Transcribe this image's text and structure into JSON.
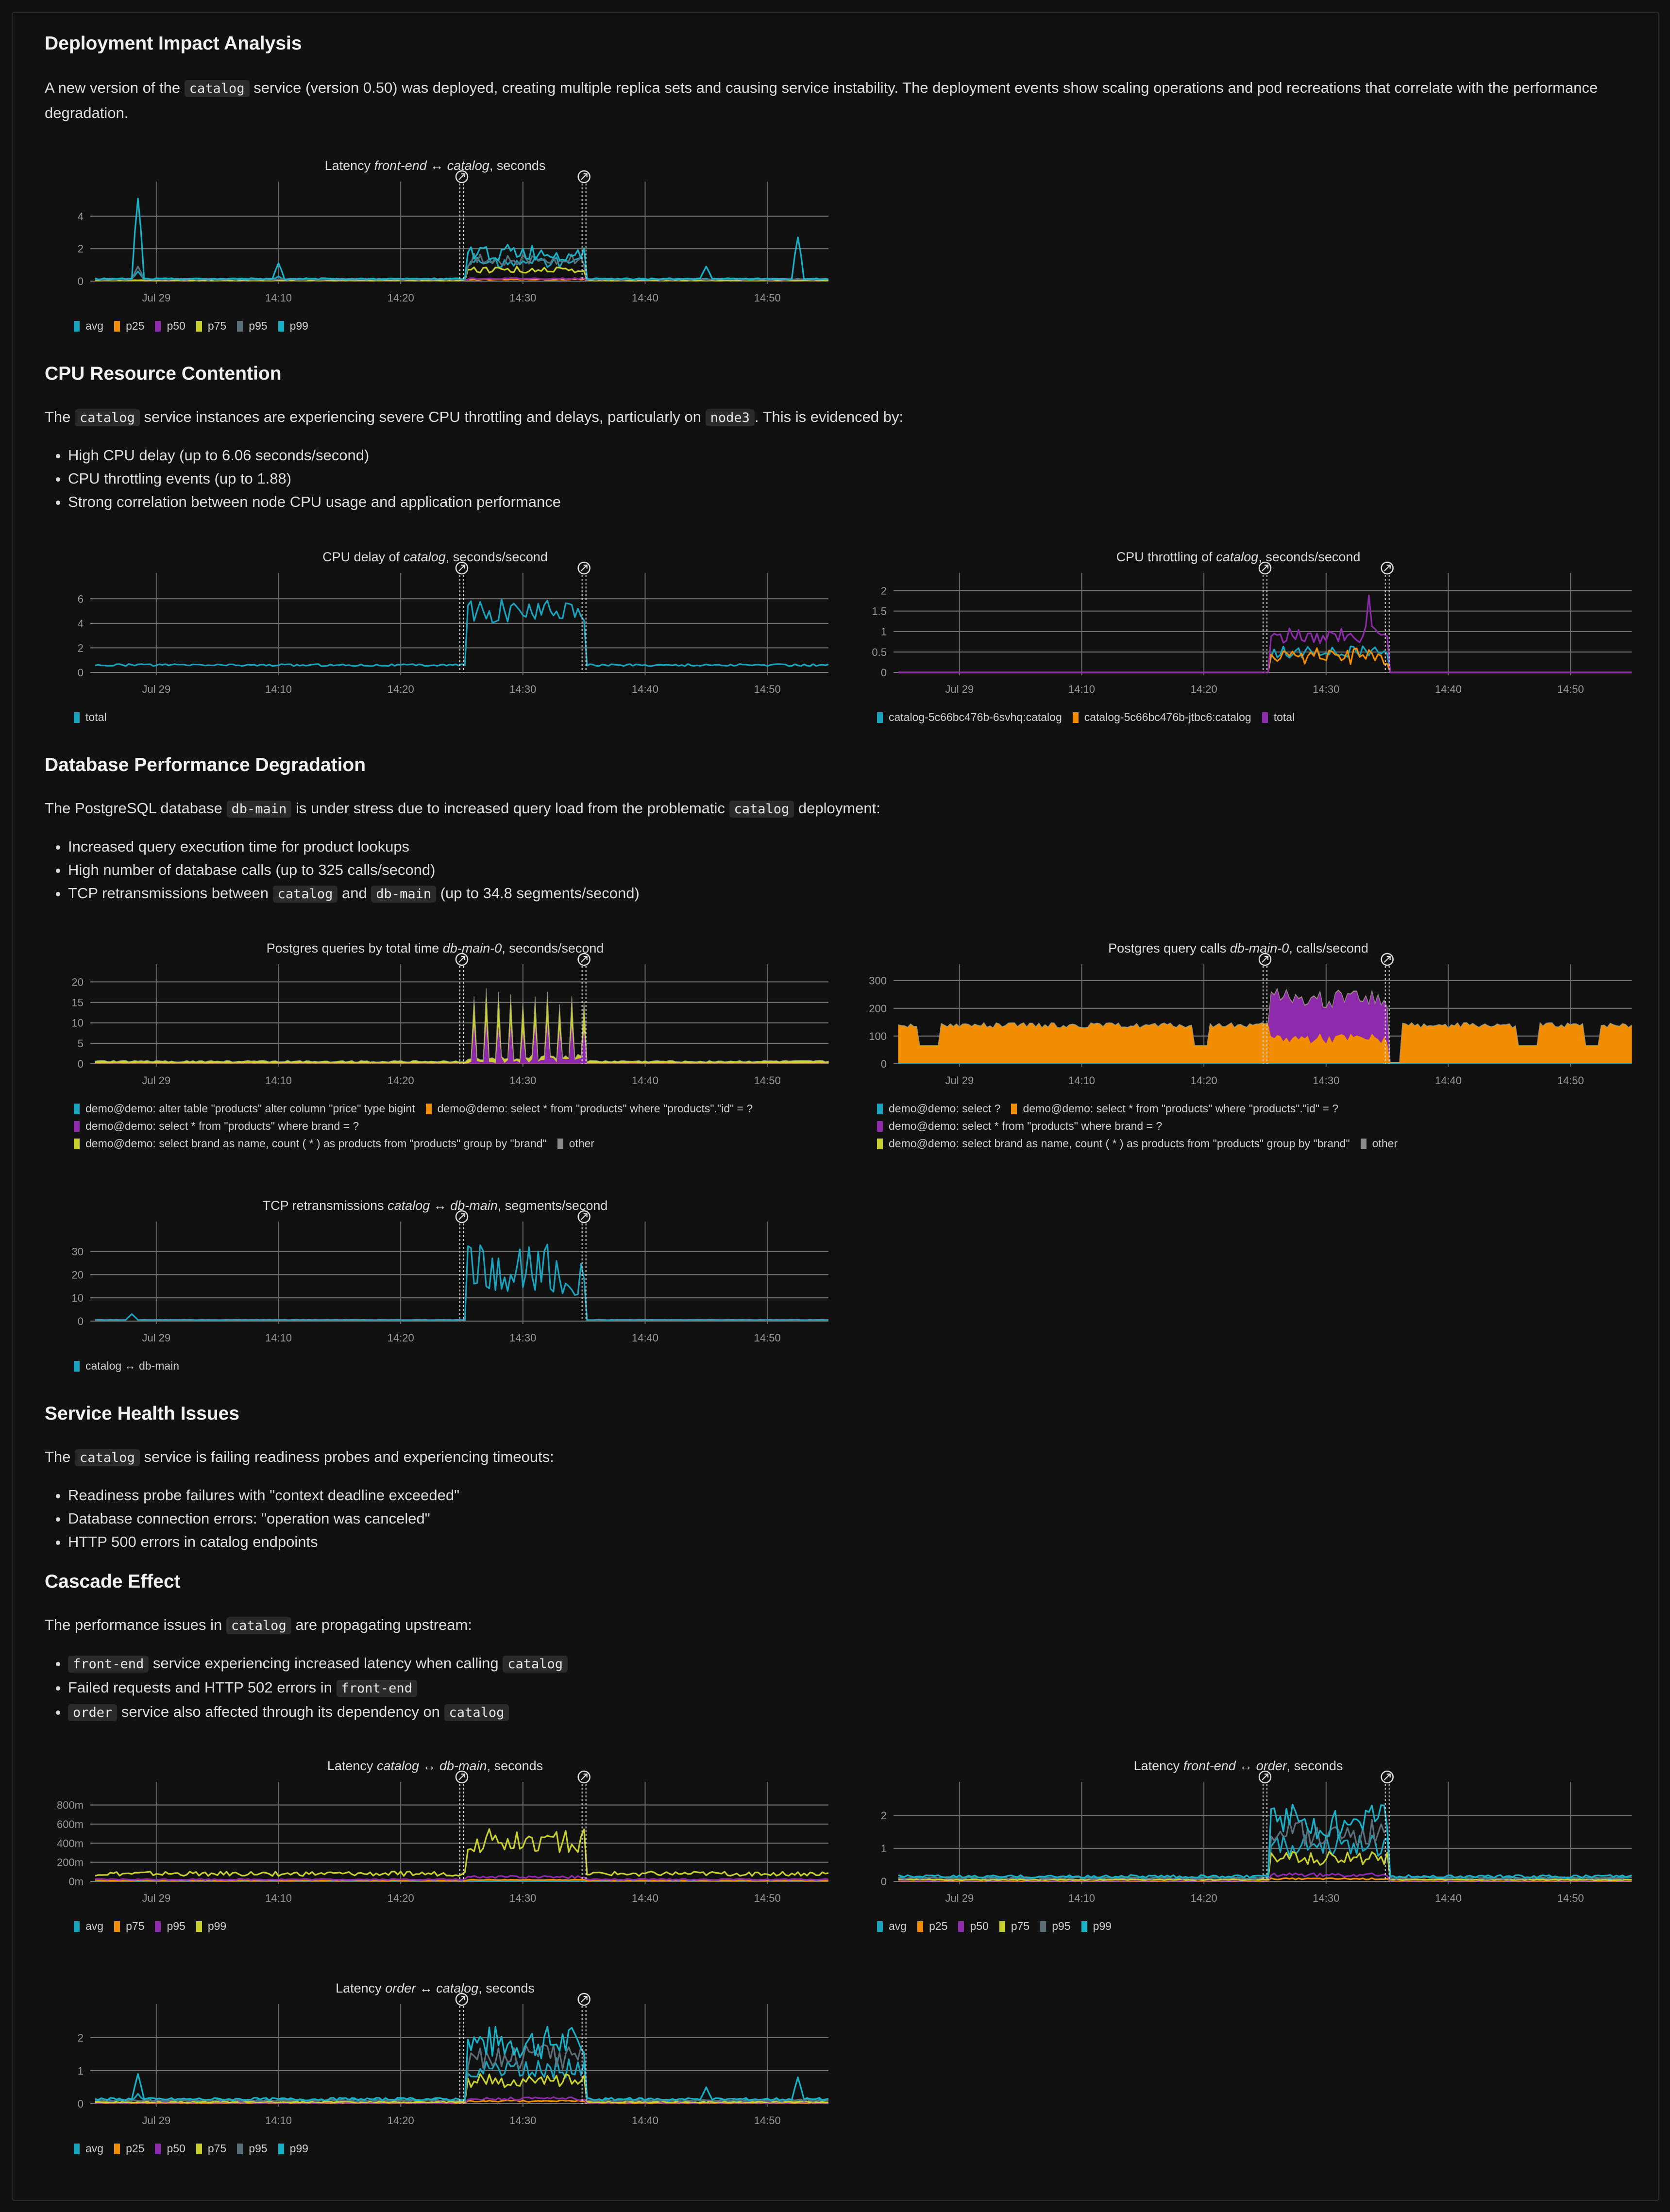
{
  "colors": {
    "background": "#111111",
    "text": "#dedede",
    "grid": "#7a7a7a",
    "annotation": "#e0e0e0"
  },
  "sections": {
    "deployment": {
      "title": "Deployment Impact Analysis",
      "p1_a": "A new version of the ",
      "p1_code": "catalog",
      "p1_b": " service (version 0.50) was deployed, creating multiple replica sets and causing service instability. The deployment events show scaling operations and pod recreations that correlate with the performance degradation."
    },
    "cpu": {
      "title": "CPU Resource Contention",
      "p_a": "The ",
      "p_code1": "catalog",
      "p_b": " service instances are experiencing severe CPU throttling and delays, particularly on ",
      "p_code2": "node3",
      "p_c": ". This is evidenced by:",
      "bullets": [
        "High CPU delay (up to 6.06 seconds/second)",
        "CPU throttling events (up to 1.88)",
        "Strong correlation between node CPU usage and application performance"
      ]
    },
    "db": {
      "title": "Database Performance Degradation",
      "p_a": "The PostgreSQL database ",
      "p_code1": "db-main",
      "p_b": " is under stress due to increased query load from the problematic ",
      "p_code2": "catalog",
      "p_c": " deployment:",
      "bullet1": "Increased query execution time for product lookups",
      "bullet2": "High number of database calls (up to 325 calls/second)",
      "bullet3_a": "TCP retransmissions between ",
      "bullet3_code1": "catalog",
      "bullet3_b": " and ",
      "bullet3_code2": "db-main",
      "bullet3_c": " (up to 34.8 segments/second)"
    },
    "health": {
      "title": "Service Health Issues",
      "p_a": "The ",
      "p_code": "catalog",
      "p_b": " service is failing readiness probes and experiencing timeouts:",
      "bullets": [
        "Readiness probe failures with \"context deadline exceeded\"",
        "Database connection errors: \"operation was canceled\"",
        "HTTP 500 errors in catalog endpoints"
      ]
    },
    "cascade": {
      "title": "Cascade Effect",
      "p_a": "The performance issues in ",
      "p_code": "catalog",
      "p_b": " are propagating upstream:",
      "b1_code1": "front-end",
      "b1_text": " service experiencing increased latency when calling ",
      "b1_code2": "catalog",
      "b2_text": "Failed requests and HTTP 502 errors in ",
      "b2_code": "front-end",
      "b3_code1": "order",
      "b3_text": " service also affected through its dependency on ",
      "b3_code2": "catalog"
    }
  },
  "chart_data": [
    {
      "id": "c1",
      "type": "line",
      "title_pre": "Latency ",
      "title_em": "front-end ↔ catalog",
      "title_post": ", seconds",
      "x_labels": [
        "Jul 29",
        "14:10",
        "14:20",
        "14:30",
        "14:40",
        "14:50"
      ],
      "x_range": [
        "14:00",
        "15:00"
      ],
      "events_at": [
        "14:30",
        "14:40"
      ],
      "ylim": [
        0,
        5.3
      ],
      "yticks": [
        0,
        2,
        4
      ],
      "ytick_labels": [
        "0",
        "2",
        "4"
      ],
      "series": [
        {
          "name": "avg",
          "color": "#1aa3bd",
          "shape": "lat",
          "base": 0.12,
          "peak": 1.5,
          "spikes": [
            [
              3.5,
              0.6
            ],
            [
              15,
              0.3
            ]
          ]
        },
        {
          "name": "p25",
          "color": "#f28c00",
          "shape": "lat",
          "base": 0.02,
          "peak": 0.12,
          "spikes": []
        },
        {
          "name": "p50",
          "color": "#8e2bad",
          "shape": "lat",
          "base": 0.03,
          "peak": 0.2,
          "spikes": []
        },
        {
          "name": "p75",
          "color": "#c8d02f",
          "shape": "lat",
          "base": 0.05,
          "peak": 0.9,
          "spikes": []
        },
        {
          "name": "p95",
          "color": "#5c6f78",
          "shape": "lat",
          "base": 0.1,
          "peak": 1.7,
          "spikes": [
            [
              3.5,
              0.9
            ]
          ]
        },
        {
          "name": "p99",
          "color": "#18b2c8",
          "shape": "lat",
          "base": 0.14,
          "peak": 2.3,
          "spikes": [
            [
              3.5,
              5.1
            ],
            [
              15,
              1.1
            ],
            [
              50,
              0.9
            ],
            [
              57.5,
              2.7
            ]
          ]
        }
      ]
    },
    {
      "id": "c2",
      "type": "line",
      "title_pre": "CPU delay of ",
      "title_em": "catalog",
      "title_post": ", seconds/second",
      "x_labels": [
        "Jul 29",
        "14:10",
        "14:20",
        "14:30",
        "14:40",
        "14:50"
      ],
      "x_range": [
        "14:00",
        "15:00"
      ],
      "events_at": [
        "14:30",
        "14:40"
      ],
      "ylim": [
        0,
        7
      ],
      "yticks": [
        0,
        2,
        4,
        6
      ],
      "ytick_labels": [
        "0",
        "2",
        "4",
        "6"
      ],
      "series": [
        {
          "name": "total",
          "color": "#1aa3bd",
          "shape": "plateau",
          "base": 0.6,
          "peak": 5.0,
          "amp": 1.0
        }
      ]
    },
    {
      "id": "c3",
      "type": "line",
      "title_pre": "CPU throttling of ",
      "title_em": "catalog",
      "title_post": ", seconds/second",
      "x_labels": [
        "Jul 29",
        "14:10",
        "14:20",
        "14:30",
        "14:40",
        "14:50"
      ],
      "x_range": [
        "14:00",
        "15:00"
      ],
      "events_at": [
        "14:30",
        "14:40"
      ],
      "ylim": [
        0,
        2.1
      ],
      "yticks": [
        0,
        0.5,
        1,
        1.5,
        2
      ],
      "ytick_labels": [
        "0",
        "0.5",
        "1",
        "1.5",
        "2"
      ],
      "series": [
        {
          "name": "catalog-5c66bc476b-6svhq:catalog",
          "color": "#1aa3bd",
          "shape": "plateau",
          "base": 0,
          "peak": 0.5,
          "amp": 0.15
        },
        {
          "name": "catalog-5c66bc476b-jtbc6:catalog",
          "color": "#f28c00",
          "shape": "plateau",
          "base": 0,
          "peak": 0.4,
          "amp": 0.2
        },
        {
          "name": "total",
          "color": "#8e2bad",
          "shape": "plateau",
          "base": 0,
          "peak": 0.9,
          "amp": 0.2,
          "spikes": [
            [
              38.5,
              1.88
            ]
          ]
        }
      ]
    },
    {
      "id": "c4",
      "type": "area",
      "title_pre": "Postgres queries by total time ",
      "title_em": "db-main-0",
      "title_post": ", seconds/second",
      "x_labels": [
        "Jul 29",
        "14:10",
        "14:20",
        "14:30",
        "14:40",
        "14:50"
      ],
      "x_range": [
        "14:00",
        "15:00"
      ],
      "events_at": [
        "14:30",
        "14:40"
      ],
      "ylim": [
        0,
        21
      ],
      "yticks": [
        0,
        5,
        10,
        15,
        20
      ],
      "ytick_labels": [
        "0",
        "5",
        "10",
        "15",
        "20"
      ],
      "series": [
        {
          "name": "demo@demo: alter table \"products\" alter column \"price\" type bigint",
          "color": "#1aa3bd",
          "shape": "flat",
          "base": 0
        },
        {
          "name": "demo@demo: select * from \"products\" where \"products\".\"id\" = ?",
          "color": "#f28c00",
          "shape": "flat",
          "base": 0.1
        },
        {
          "name": "demo@demo: select * from \"products\" where brand = ?",
          "color": "#8e2bad",
          "shape": "comb",
          "base": 0.05,
          "peak": 10
        },
        {
          "name": "demo@demo: select brand as name, count ( * ) as products from \"products\" group by \"brand\"",
          "color": "#c8d02f",
          "shape": "comb",
          "base": 0.5,
          "peak": 7
        },
        {
          "name": "other",
          "color": "#8a8a8a",
          "shape": "flat",
          "base": 0
        }
      ]
    },
    {
      "id": "c5",
      "type": "area",
      "title_pre": "Postgres query calls ",
      "title_em": "db-main-0",
      "title_post": ", calls/second",
      "x_labels": [
        "Jul 29",
        "14:10",
        "14:20",
        "14:30",
        "14:40",
        "14:50"
      ],
      "x_range": [
        "14:00",
        "15:00"
      ],
      "events_at": [
        "14:30",
        "14:40"
      ],
      "ylim": [
        0,
        310
      ],
      "yticks": [
        0,
        100,
        200,
        300
      ],
      "ytick_labels": [
        "0",
        "100",
        "200",
        "300"
      ],
      "series": [
        {
          "name": "demo@demo: select ?",
          "color": "#1aa3bd",
          "shape": "flat",
          "base": 4
        },
        {
          "name": "demo@demo: select * from \"products\" where \"products\".\"id\" = ?",
          "color": "#f28c00",
          "shape": "calls",
          "base": 135,
          "peak": 70
        },
        {
          "name": "demo@demo: select * from \"products\" where brand = ?",
          "color": "#8e2bad",
          "shape": "plateau",
          "base": 0,
          "peak": 140,
          "amp": 30
        },
        {
          "name": "demo@demo: select brand as name, count ( * ) as products from \"products\" group by \"brand\"",
          "color": "#c8d02f",
          "shape": "flat",
          "base": 1
        },
        {
          "name": "other",
          "color": "#8a8a8a",
          "shape": "flat",
          "base": 1
        }
      ]
    },
    {
      "id": "c6",
      "type": "line",
      "title_pre": "TCP retransmissions ",
      "title_em": "catalog ↔ db-main",
      "title_post": ", segments/second",
      "x_labels": [
        "Jul 29",
        "14:10",
        "14:20",
        "14:30",
        "14:40",
        "14:50"
      ],
      "x_range": [
        "14:00",
        "15:00"
      ],
      "events_at": [
        "14:30",
        "14:40"
      ],
      "ylim": [
        0,
        37
      ],
      "yticks": [
        0,
        10,
        20,
        30
      ],
      "ytick_labels": [
        "0",
        "10",
        "20",
        "30"
      ],
      "series": [
        {
          "name": "catalog ↔ db-main",
          "color": "#1aa3bd",
          "shape": "plateau",
          "base": 0.5,
          "peak": 22,
          "amp": 11,
          "spikes": [
            [
              3,
              3
            ]
          ]
        }
      ]
    },
    {
      "id": "c7",
      "type": "line",
      "title_pre": "Latency ",
      "title_em": "catalog ↔ db-main",
      "title_post": ", seconds",
      "x_labels": [
        "Jul 29",
        "14:10",
        "14:20",
        "14:30",
        "14:40",
        "14:50"
      ],
      "x_range": [
        "14:00",
        "15:00"
      ],
      "events_at": [
        "14:30",
        "14:40"
      ],
      "ylim": [
        0,
        0.9
      ],
      "yticks": [
        0,
        0.2,
        0.4,
        0.6,
        0.8
      ],
      "ytick_labels": [
        "0m",
        "200m",
        "400m",
        "600m",
        "800m"
      ],
      "series": [
        {
          "name": "avg",
          "color": "#1aa3bd",
          "shape": "flat",
          "base": 0.005
        },
        {
          "name": "p75",
          "color": "#f28c00",
          "shape": "lat",
          "base": 0.01,
          "peak": 0.02,
          "spikes": []
        },
        {
          "name": "p95",
          "color": "#8e2bad",
          "shape": "lat",
          "base": 0.02,
          "peak": 0.06,
          "spikes": []
        },
        {
          "name": "p99",
          "color": "#c8d02f",
          "shape": "lat",
          "base": 0.08,
          "peak": 0.55,
          "spikes": []
        }
      ]
    },
    {
      "id": "c8",
      "type": "line",
      "title_pre": "Latency ",
      "title_em": "front-end ↔ order",
      "title_post": ", seconds",
      "x_labels": [
        "Jul 29",
        "14:10",
        "14:20",
        "14:30",
        "14:40",
        "14:50"
      ],
      "x_range": [
        "14:00",
        "15:00"
      ],
      "events_at": [
        "14:30",
        "14:40"
      ],
      "ylim": [
        0,
        2.6
      ],
      "yticks": [
        0,
        1,
        2
      ],
      "ytick_labels": [
        "0",
        "1",
        "2"
      ],
      "series": [
        {
          "name": "avg",
          "color": "#1aa3bd",
          "shape": "lat",
          "base": 0.1,
          "peak": 1.4,
          "spikes": []
        },
        {
          "name": "p25",
          "color": "#f28c00",
          "shape": "lat",
          "base": 0.02,
          "peak": 0.1,
          "spikes": []
        },
        {
          "name": "p50",
          "color": "#8e2bad",
          "shape": "lat",
          "base": 0.03,
          "peak": 0.25,
          "spikes": []
        },
        {
          "name": "p75",
          "color": "#c8d02f",
          "shape": "lat",
          "base": 0.05,
          "peak": 0.9,
          "spikes": []
        },
        {
          "name": "p95",
          "color": "#5c6f78",
          "shape": "lat",
          "base": 0.1,
          "peak": 1.9,
          "spikes": []
        },
        {
          "name": "p99",
          "color": "#18b2c8",
          "shape": "lat",
          "base": 0.15,
          "peak": 2.35,
          "spikes": []
        }
      ]
    },
    {
      "id": "c9",
      "type": "line",
      "title_pre": "Latency ",
      "title_em": "order ↔ catalog",
      "title_post": ", seconds",
      "x_labels": [
        "Jul 29",
        "14:10",
        "14:20",
        "14:30",
        "14:40",
        "14:50"
      ],
      "x_range": [
        "14:00",
        "15:00"
      ],
      "events_at": [
        "14:30",
        "14:40"
      ],
      "ylim": [
        0,
        2.6
      ],
      "yticks": [
        0,
        1,
        2
      ],
      "ytick_labels": [
        "0",
        "1",
        "2"
      ],
      "series": [
        {
          "name": "avg",
          "color": "#1aa3bd",
          "shape": "lat",
          "base": 0.1,
          "peak": 1.4,
          "spikes": [
            [
              3.5,
              0.3
            ]
          ]
        },
        {
          "name": "p25",
          "color": "#f28c00",
          "shape": "lat",
          "base": 0.02,
          "peak": 0.1,
          "spikes": []
        },
        {
          "name": "p50",
          "color": "#8e2bad",
          "shape": "lat",
          "base": 0.03,
          "peak": 0.2,
          "spikes": []
        },
        {
          "name": "p75",
          "color": "#c8d02f",
          "shape": "lat",
          "base": 0.05,
          "peak": 0.9,
          "spikes": []
        },
        {
          "name": "p95",
          "color": "#5c6f78",
          "shape": "lat",
          "base": 0.1,
          "peak": 1.8,
          "spikes": []
        },
        {
          "name": "p99",
          "color": "#18b2c8",
          "shape": "lat",
          "base": 0.14,
          "peak": 2.35,
          "spikes": [
            [
              3.5,
              0.9
            ],
            [
              50,
              0.5
            ],
            [
              57.5,
              0.8
            ]
          ]
        }
      ]
    }
  ]
}
